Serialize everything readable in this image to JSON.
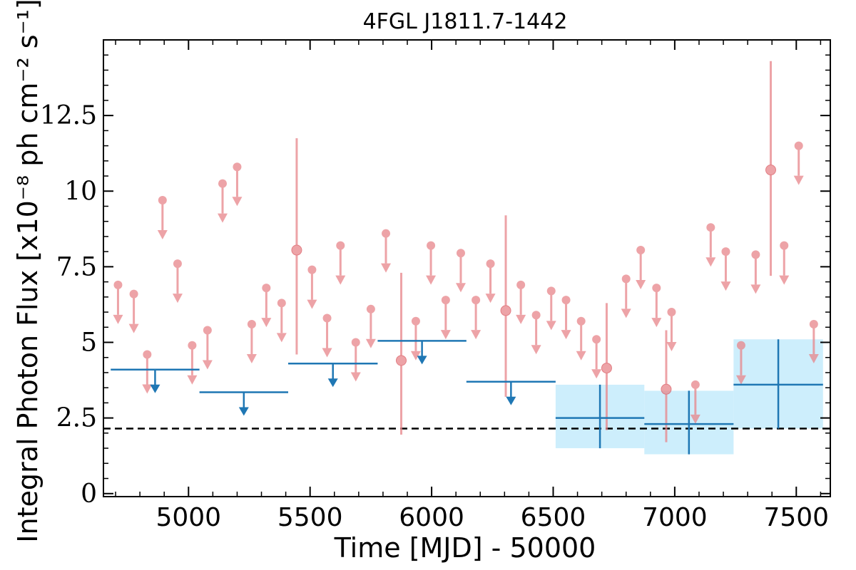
{
  "chart_data": {
    "type": "scatter",
    "title": "4FGL J1811.7-1442",
    "xlabel": "Time [MJD] - 50000",
    "ylabel": "Integral Photon Flux [x10⁻⁸ ph cm⁻² s⁻¹]",
    "xlim": [
      4650,
      7640
    ],
    "ylim": [
      -0.1,
      15
    ],
    "x_ticks": [
      5000,
      5500,
      6000,
      6500,
      7000,
      7500
    ],
    "x_tick_labels": [
      "5000",
      "5500",
      "6000",
      "6500",
      "7000",
      "7500"
    ],
    "y_ticks": [
      0,
      2.5,
      5,
      7.5,
      10,
      12.5
    ],
    "y_tick_labels": [
      "0",
      "2.5",
      "5",
      "7.5",
      "10",
      "12.5"
    ],
    "reference_line": {
      "y": 2.15,
      "style": "dashed",
      "color": "#000000"
    },
    "colors": {
      "short_bins": "#e8858a",
      "long_bins": "#1f77b4",
      "long_bin_band": "#cdeefc"
    },
    "short_bin_upper_limits": [
      [
        4710,
        6.9
      ],
      [
        4775,
        6.6
      ],
      [
        4830,
        4.6
      ],
      [
        4893,
        9.7
      ],
      [
        4955,
        7.6
      ],
      [
        5015,
        4.9
      ],
      [
        5078,
        5.4
      ],
      [
        5140,
        10.25
      ],
      [
        5200,
        10.8
      ],
      [
        5260,
        5.6
      ],
      [
        5320,
        6.8
      ],
      [
        5383,
        6.3
      ],
      [
        5508,
        7.4
      ],
      [
        5570,
        5.8
      ],
      [
        5625,
        8.2
      ],
      [
        5688,
        5.0
      ],
      [
        5750,
        6.1
      ],
      [
        5812,
        8.6
      ],
      [
        5935,
        5.7
      ],
      [
        5997,
        8.2
      ],
      [
        6058,
        6.4
      ],
      [
        6120,
        7.95
      ],
      [
        6182,
        6.4
      ],
      [
        6242,
        7.6
      ],
      [
        6367,
        6.9
      ],
      [
        6430,
        5.9
      ],
      [
        6492,
        6.7
      ],
      [
        6553,
        6.4
      ],
      [
        6615,
        5.7
      ],
      [
        6678,
        5.1
      ],
      [
        6800,
        7.1
      ],
      [
        6860,
        8.05
      ],
      [
        6925,
        6.8
      ],
      [
        6987,
        6.0
      ],
      [
        7085,
        3.6
      ],
      [
        7148,
        8.8
      ],
      [
        7210,
        8.0
      ],
      [
        7273,
        4.9
      ],
      [
        7333,
        7.9
      ],
      [
        7450,
        8.2
      ],
      [
        7510,
        11.5
      ],
      [
        7572,
        5.6
      ]
    ],
    "short_bin_detections": [
      {
        "x": 5445,
        "y": 8.05,
        "ylo": 4.6,
        "yhi": 11.75
      },
      {
        "x": 5875,
        "y": 4.4,
        "ylo": 1.95,
        "yhi": 7.3
      },
      {
        "x": 6305,
        "y": 6.05,
        "ylo": 3.2,
        "yhi": 9.2
      },
      {
        "x": 6720,
        "y": 4.15,
        "ylo": 2.1,
        "yhi": 6.3
      },
      {
        "x": 6965,
        "y": 3.45,
        "ylo": 1.7,
        "yhi": 5.4
      },
      {
        "x": 7395,
        "y": 10.7,
        "ylo": 7.2,
        "yhi": 14.3
      }
    ],
    "long_bin_upper_limits": [
      {
        "x0": 4680,
        "x1": 5045,
        "y": 4.1
      },
      {
        "x0": 5045,
        "x1": 5410,
        "y": 3.35
      },
      {
        "x0": 5410,
        "x1": 5778,
        "y": 4.3
      },
      {
        "x0": 5778,
        "x1": 6143,
        "y": 5.05
      },
      {
        "x0": 6143,
        "x1": 6510,
        "y": 3.7
      }
    ],
    "long_bin_detections": [
      {
        "x0": 6510,
        "x1": 6875,
        "y": 2.5,
        "ylo": 1.5,
        "yhi": 3.6
      },
      {
        "x0": 6875,
        "x1": 7242,
        "y": 2.3,
        "ylo": 1.3,
        "yhi": 3.4
      },
      {
        "x0": 7242,
        "x1": 7610,
        "y": 3.6,
        "ylo": 2.15,
        "yhi": 5.1
      }
    ]
  }
}
